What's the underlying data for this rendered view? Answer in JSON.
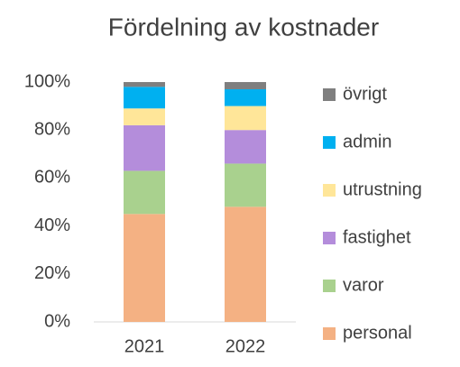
{
  "chart_data": {
    "type": "stacked_bar",
    "title": "Fördelning av kostnader",
    "categories": [
      "2021",
      "2022"
    ],
    "series": [
      {
        "name": "personal",
        "color": "#f4b183",
        "values": [
          45,
          48
        ]
      },
      {
        "name": "varor",
        "color": "#a9d18e",
        "values": [
          18,
          18
        ]
      },
      {
        "name": "fastighet",
        "color": "#b48ddb",
        "values": [
          19,
          14
        ]
      },
      {
        "name": "utrustning",
        "color": "#ffe699",
        "values": [
          7,
          10
        ]
      },
      {
        "name": "admin",
        "color": "#00b0f0",
        "values": [
          9,
          7
        ]
      },
      {
        "name": "övrigt",
        "color": "#7f7f7f",
        "values": [
          2,
          3
        ]
      }
    ],
    "ylim": [
      0,
      100
    ],
    "yticks": [
      {
        "value": 0,
        "label": "0%"
      },
      {
        "value": 20,
        "label": "20%"
      },
      {
        "value": 40,
        "label": "40%"
      },
      {
        "value": 60,
        "label": "60%"
      },
      {
        "value": 80,
        "label": "80%"
      },
      {
        "value": 100,
        "label": "100%"
      }
    ],
    "grid": false,
    "legend": "right"
  }
}
